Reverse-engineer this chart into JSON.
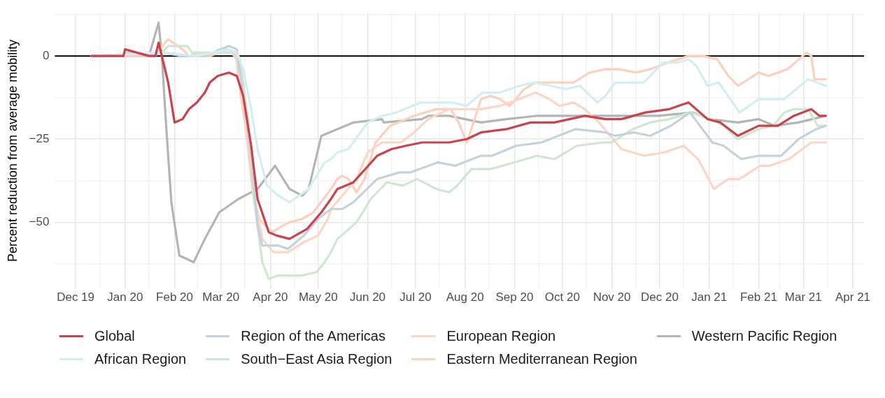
{
  "chart_data": {
    "type": "line",
    "ylabel": "Percent reduction from average mobility",
    "xlim": [
      "2019-11-18",
      "2021-04-08"
    ],
    "xticks": [
      {
        "value": "2019-12-01",
        "label": "Dec 19"
      },
      {
        "value": "2019-12-16",
        "label": null
      },
      {
        "value": "2020-01-01",
        "label": "Jan 20"
      },
      {
        "value": "2020-01-16",
        "label": null
      },
      {
        "value": "2020-02-01",
        "label": "Feb 20"
      },
      {
        "value": "2020-02-15",
        "label": null
      },
      {
        "value": "2020-03-01",
        "label": "Mar 20"
      },
      {
        "value": "2020-03-16",
        "label": null
      },
      {
        "value": "2020-04-01",
        "label": "Apr 20"
      },
      {
        "value": "2020-04-16",
        "label": null
      },
      {
        "value": "2020-05-01",
        "label": "May 20"
      },
      {
        "value": "2020-05-16",
        "label": null
      },
      {
        "value": "2020-06-01",
        "label": "Jun 20"
      },
      {
        "value": "2020-06-16",
        "label": null
      },
      {
        "value": "2020-07-01",
        "label": "Jul 20"
      },
      {
        "value": "2020-07-16",
        "label": null
      },
      {
        "value": "2020-08-01",
        "label": "Aug 20"
      },
      {
        "value": "2020-08-16",
        "label": null
      },
      {
        "value": "2020-09-01",
        "label": "Sep 20"
      },
      {
        "value": "2020-09-16",
        "label": null
      },
      {
        "value": "2020-10-01",
        "label": "Oct 20"
      },
      {
        "value": "2020-10-16",
        "label": null
      },
      {
        "value": "2020-11-01",
        "label": "Nov 20"
      },
      {
        "value": "2020-11-16",
        "label": null
      },
      {
        "value": "2020-12-01",
        "label": "Dec 20"
      },
      {
        "value": "2020-12-16",
        "label": null
      },
      {
        "value": "2021-01-01",
        "label": "Jan 21"
      },
      {
        "value": "2021-01-16",
        "label": null
      },
      {
        "value": "2021-02-01",
        "label": "Feb 21"
      },
      {
        "value": "2021-02-14",
        "label": null
      },
      {
        "value": "2021-03-01",
        "label": "Mar 21"
      },
      {
        "value": "2021-03-16",
        "label": null
      },
      {
        "value": "2021-04-01",
        "label": "Apr 21"
      }
    ],
    "ylim": [
      -70,
      13
    ],
    "yticks": [
      {
        "value": -62.5,
        "label": null
      },
      -50,
      {
        "value": -37.5,
        "label": null
      },
      -25,
      {
        "value": -12.5,
        "label": null
      },
      0,
      {
        "value": 12.5,
        "label": null
      }
    ],
    "grid": true,
    "legend": "bottom",
    "marker": "none",
    "line_style": "solid",
    "ref_lines": [
      {
        "axis": "y",
        "value": 0,
        "color": "#000000"
      }
    ],
    "series": [
      {
        "name": "Global",
        "color": "#c9434d",
        "x": [
          "2019-12-11",
          "2019-12-31",
          "2020-01-01",
          "2020-01-16",
          "2020-01-20",
          "2020-01-22",
          "2020-01-24",
          "2020-01-28",
          "2020-02-01",
          "2020-02-06",
          "2020-02-10",
          "2020-02-15",
          "2020-02-20",
          "2020-02-23",
          "2020-02-28",
          "2020-03-06",
          "2020-03-11",
          "2020-03-15",
          "2020-03-20",
          "2020-03-24",
          "2020-03-31",
          "2020-04-05",
          "2020-04-13",
          "2020-04-24",
          "2020-05-03",
          "2020-05-09",
          "2020-05-13",
          "2020-05-23",
          "2020-06-07",
          "2020-06-16",
          "2020-06-25",
          "2020-07-05",
          "2020-07-22",
          "2020-08-02",
          "2020-08-11",
          "2020-08-27",
          "2020-09-11",
          "2020-09-26",
          "2020-10-15",
          "2020-10-28",
          "2020-11-07",
          "2020-11-22",
          "2020-12-07",
          "2020-12-19",
          "2020-12-31",
          "2021-01-08",
          "2021-01-19",
          "2021-02-01",
          "2021-02-13",
          "2021-02-23",
          "2021-03-06",
          "2021-03-11",
          "2021-03-15"
        ],
        "values": [
          0,
          0,
          2,
          0,
          0,
          4,
          0,
          -8,
          -20,
          -19,
          -16,
          -14,
          -11,
          -8,
          -6,
          -5,
          -6,
          -12,
          -27,
          -43,
          -53,
          -54,
          -55,
          -52,
          -47,
          -43,
          -40,
          -38,
          -30,
          -28,
          -27,
          -26,
          -26,
          -25,
          -23,
          -22,
          -20,
          -20,
          -18,
          -19,
          -19,
          -17,
          -16,
          -14,
          -19,
          -20,
          -24,
          -21,
          -21,
          -18,
          -16,
          -18,
          -18
        ]
      },
      {
        "name": "African Region",
        "color": "#d3eef2",
        "x": [
          "2019-12-11",
          "2020-01-24",
          "2020-02-15",
          "2020-03-06",
          "2020-03-11",
          "2020-03-15",
          "2020-03-20",
          "2020-03-24",
          "2020-03-30",
          "2020-04-06",
          "2020-04-13",
          "2020-04-25",
          "2020-05-05",
          "2020-05-09",
          "2020-05-13",
          "2020-05-20",
          "2020-06-01",
          "2020-06-10",
          "2020-06-19",
          "2020-07-04",
          "2020-07-14",
          "2020-07-24",
          "2020-08-02",
          "2020-08-12",
          "2020-08-23",
          "2020-09-04",
          "2020-09-13",
          "2020-09-24",
          "2020-10-03",
          "2020-10-12",
          "2020-10-23",
          "2020-10-28",
          "2020-11-03",
          "2020-11-15",
          "2020-11-21",
          "2020-12-03",
          "2020-12-12",
          "2020-12-19",
          "2020-12-24",
          "2020-12-31",
          "2021-01-07",
          "2021-01-20",
          "2021-02-01",
          "2021-02-10",
          "2021-02-17",
          "2021-03-04",
          "2021-03-10",
          "2021-03-15"
        ],
        "values": [
          0,
          1,
          0,
          2,
          1,
          -4,
          -16,
          -28,
          -39,
          -42,
          -44,
          -40,
          -32,
          -31,
          -29,
          -28,
          -20,
          -18,
          -17,
          -14,
          -14,
          -14,
          -15,
          -11,
          -11,
          -9,
          -8,
          -9,
          -10,
          -9,
          -14,
          -12,
          -8,
          -8,
          -8,
          -2,
          -2,
          -1,
          -3,
          -9,
          -8,
          -17,
          -13,
          -13,
          -13,
          -7,
          -8,
          -9
        ]
      },
      {
        "name": "Region of the Americas",
        "color": "#c3d3de",
        "x": [
          "2019-12-11",
          "2019-12-31",
          "2020-01-01",
          "2020-01-16",
          "2020-01-24",
          "2020-02-06",
          "2020-02-20",
          "2020-03-06",
          "2020-03-11",
          "2020-03-15",
          "2020-03-20",
          "2020-03-24",
          "2020-03-27",
          "2020-04-06",
          "2020-04-12",
          "2020-04-22",
          "2020-05-01",
          "2020-05-09",
          "2020-05-16",
          "2020-05-23",
          "2020-06-07",
          "2020-06-21",
          "2020-06-28",
          "2020-07-15",
          "2020-07-26",
          "2020-08-11",
          "2020-08-18",
          "2020-09-02",
          "2020-09-18",
          "2020-10-09",
          "2020-10-28",
          "2020-11-03",
          "2020-11-15",
          "2020-11-25",
          "2020-12-08",
          "2020-12-20",
          "2021-01-03",
          "2021-01-10",
          "2021-01-21",
          "2021-02-01",
          "2021-02-15",
          "2021-02-26",
          "2021-03-09",
          "2021-03-15"
        ],
        "values": [
          0,
          0,
          1,
          0,
          1,
          0,
          0,
          3,
          2,
          -12,
          -30,
          -51,
          -57,
          -57,
          -58,
          -54,
          -49,
          -46,
          -46,
          -44,
          -37,
          -35,
          -35,
          -32,
          -33,
          -30,
          -30,
          -27,
          -26,
          -22,
          -23,
          -24,
          -23,
          -24,
          -21,
          -17,
          -26,
          -27,
          -31,
          -30,
          -30,
          -25,
          -22,
          -21
        ]
      },
      {
        "name": "South−East Asia Region",
        "color": "#cfe7d0",
        "x": [
          "2019-12-11",
          "2020-01-24",
          "2020-01-28",
          "2020-02-09",
          "2020-02-12",
          "2020-02-29",
          "2020-03-11",
          "2020-03-13",
          "2020-03-18",
          "2020-03-22",
          "2020-03-27",
          "2020-03-31",
          "2020-04-06",
          "2020-04-21",
          "2020-04-30",
          "2020-05-05",
          "2020-05-09",
          "2020-05-13",
          "2020-05-18",
          "2020-05-25",
          "2020-06-03",
          "2020-06-13",
          "2020-06-23",
          "2020-07-02",
          "2020-07-14",
          "2020-07-22",
          "2020-07-27",
          "2020-08-05",
          "2020-08-17",
          "2020-09-01",
          "2020-09-15",
          "2020-09-26",
          "2020-10-10",
          "2020-10-27",
          "2020-11-01",
          "2020-11-14",
          "2020-11-25",
          "2020-12-07",
          "2020-12-20",
          "2021-01-03",
          "2021-01-10",
          "2021-01-19",
          "2021-02-01",
          "2021-02-10",
          "2021-02-17",
          "2021-02-23",
          "2021-03-04",
          "2021-03-10",
          "2021-03-15"
        ],
        "values": [
          0,
          1,
          3,
          3,
          1,
          1,
          1,
          -1,
          -19,
          -44,
          -62,
          -67,
          -66,
          -66,
          -65,
          -62,
          -59,
          -55,
          -53,
          -50,
          -43,
          -38,
          -39,
          -37,
          -40,
          -41,
          -39,
          -34,
          -34,
          -32,
          -30,
          -31,
          -27,
          -26,
          -26,
          -22,
          -20,
          -19,
          -17,
          -19,
          -21,
          -25,
          -22,
          -21,
          -17,
          -16,
          -16,
          -21,
          -21
        ]
      },
      {
        "name": "European Region",
        "color": "#fdd6c3",
        "x": [
          "2019-12-11",
          "2020-01-24",
          "2020-02-10",
          "2020-02-23",
          "2020-03-06",
          "2020-03-11",
          "2020-03-13",
          "2020-03-18",
          "2020-03-22",
          "2020-03-27",
          "2020-04-03",
          "2020-04-12",
          "2020-04-22",
          "2020-05-01",
          "2020-05-07",
          "2020-05-09",
          "2020-05-16",
          "2020-05-25",
          "2020-06-01",
          "2020-06-10",
          "2020-06-22",
          "2020-06-30",
          "2020-07-09",
          "2020-07-22",
          "2020-07-31",
          "2020-08-11",
          "2020-08-23",
          "2020-09-04",
          "2020-09-14",
          "2020-09-23",
          "2020-09-29",
          "2020-10-08",
          "2020-10-15",
          "2020-10-24",
          "2020-11-07",
          "2020-11-21",
          "2020-12-04",
          "2020-12-16",
          "2020-12-25",
          "2021-01-04",
          "2021-01-13",
          "2021-01-20",
          "2021-02-02",
          "2021-02-08",
          "2021-02-20",
          "2021-03-06",
          "2021-03-15"
        ],
        "values": [
          0,
          1,
          0,
          0,
          2,
          0,
          -5,
          -21,
          -43,
          -55,
          -59,
          -59,
          -56,
          -54,
          -49,
          -46,
          -42,
          -37,
          -29,
          -26,
          -26,
          -23,
          -19,
          -16,
          -16,
          -16,
          -15,
          -13,
          -11,
          -13,
          -15,
          -14,
          -16,
          -20,
          -28,
          -30,
          -29,
          -27,
          -31,
          -40,
          -37,
          -37,
          -33,
          -33,
          -31,
          -26,
          -26
        ]
      },
      {
        "name": "Eastern Mediterranean Region",
        "color": "#fdcfbd",
        "x": [
          "2019-12-11",
          "2020-01-20",
          "2020-01-26",
          "2020-01-28",
          "2020-02-06",
          "2020-02-10",
          "2020-02-17",
          "2020-02-23",
          "2020-02-29",
          "2020-03-06",
          "2020-03-11",
          "2020-03-12",
          "2020-03-17",
          "2020-03-21",
          "2020-03-25",
          "2020-04-02",
          "2020-04-09",
          "2020-04-13",
          "2020-04-21",
          "2020-04-28",
          "2020-05-09",
          "2020-05-13",
          "2020-05-16",
          "2020-05-20",
          "2020-05-25",
          "2020-05-30",
          "2020-06-06",
          "2020-06-15",
          "2020-06-30",
          "2020-07-14",
          "2020-07-23",
          "2020-07-28",
          "2020-08-02",
          "2020-08-05",
          "2020-08-11",
          "2020-08-17",
          "2020-08-23",
          "2020-08-29",
          "2020-09-07",
          "2020-09-14",
          "2020-09-23",
          "2020-10-08",
          "2020-10-18",
          "2020-10-28",
          "2020-11-06",
          "2020-11-16",
          "2020-11-25",
          "2020-12-06",
          "2020-12-19",
          "2020-12-28",
          "2021-01-06",
          "2021-01-13",
          "2021-01-19",
          "2021-02-01",
          "2021-02-07",
          "2021-02-19",
          "2021-03-03",
          "2021-03-06",
          "2021-03-08",
          "2021-03-15"
        ],
        "values": [
          0,
          0,
          4,
          5,
          2,
          0,
          1,
          0,
          2,
          2,
          -1,
          -7,
          -23,
          -41,
          -49,
          -53,
          -51,
          -50,
          -49,
          -47,
          -40,
          -37,
          -36,
          -37,
          -41,
          -37,
          -26,
          -21,
          -18,
          -16,
          -16,
          -20,
          -26,
          -22,
          -13,
          -12,
          -13,
          -15,
          -10,
          -8,
          -8,
          -8,
          -5,
          -4,
          -4,
          -5,
          -4,
          -2,
          0,
          0,
          -1,
          -6,
          -9,
          -5,
          -6,
          -4,
          1,
          0,
          -7,
          -7
        ]
      },
      {
        "name": "Western Pacific Region",
        "color": "#b4b4b4",
        "x": [
          "2019-12-11",
          "2019-12-31",
          "2020-01-01",
          "2020-01-16",
          "2020-01-22",
          "2020-01-24",
          "2020-01-27",
          "2020-01-30",
          "2020-02-04",
          "2020-02-13",
          "2020-02-20",
          "2020-02-29",
          "2020-03-12",
          "2020-03-24",
          "2020-04-04",
          "2020-04-13",
          "2020-04-21",
          "2020-04-25",
          "2020-05-03",
          "2020-05-13",
          "2020-05-23",
          "2020-06-10",
          "2020-06-11",
          "2020-07-05",
          "2020-07-09",
          "2020-07-22",
          "2020-08-11",
          "2020-08-27",
          "2020-09-15",
          "2020-10-03",
          "2020-10-28",
          "2020-11-05",
          "2020-11-30",
          "2020-12-22",
          "2021-01-01",
          "2021-01-19",
          "2021-02-01",
          "2021-02-11",
          "2021-02-26",
          "2021-03-15"
        ],
        "values": [
          0,
          0,
          1,
          0,
          10,
          0,
          -23,
          -44,
          -60,
          -62,
          -55,
          -47,
          -43,
          -40,
          -33,
          -40,
          -42,
          -40,
          -24,
          -22,
          -20,
          -19,
          -20,
          -19,
          -18,
          -18,
          -20,
          -19,
          -18,
          -18,
          -18,
          -18,
          -18,
          -17,
          -19,
          -20,
          -19,
          -21,
          -20,
          -18
        ]
      }
    ]
  }
}
